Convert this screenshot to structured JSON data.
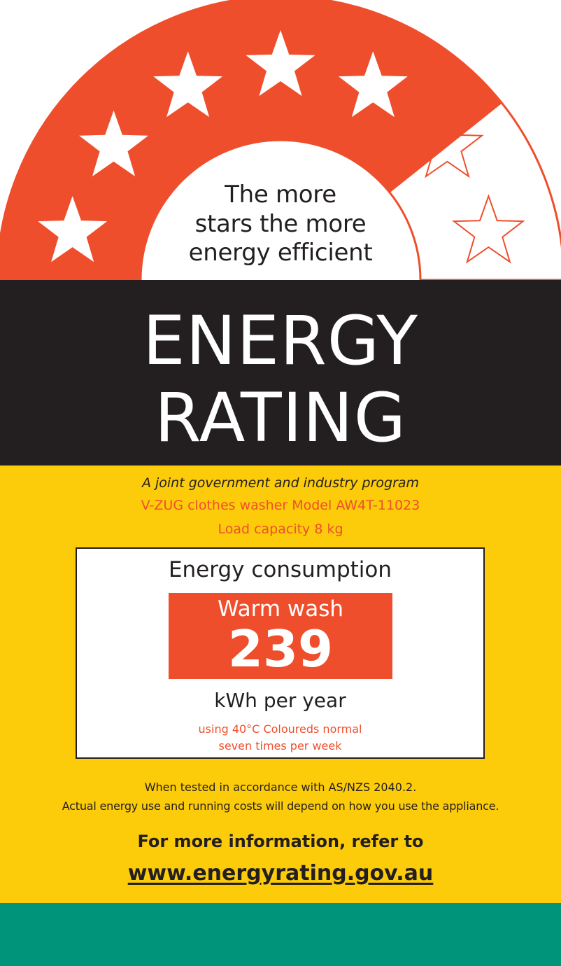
{
  "colors": {
    "orange": "#ef4e2c",
    "black": "#231f20",
    "yellow": "#fccb0a",
    "green": "#00957a",
    "white": "#ffffff"
  },
  "rating": {
    "max_stars": 7,
    "filled_stars": 5.5,
    "star_icon": "star-icon"
  },
  "tagline": {
    "line1": "The more",
    "line2": "stars the more",
    "line3": "energy efficient"
  },
  "title": {
    "line1": "ENERGY",
    "line2": "RATING"
  },
  "program": "A joint government and industry program",
  "product": {
    "model": "V-ZUG clothes washer Model AW4T-11023",
    "capacity": "Load capacity 8 kg"
  },
  "consumption": {
    "title": "Energy consumption",
    "wash_label": "Warm wash",
    "value": "239",
    "units": "kWh per year",
    "condition_line1": "using 40°C Coloureds normal",
    "condition_line2": "seven times per week"
  },
  "footer": {
    "tested": "When tested in accordance with AS/NZS 2040.2.",
    "actual": "Actual energy use and running costs will depend on how you use the appliance.",
    "more_info": "For more information, refer to",
    "website": "www.energyrating.gov.au"
  }
}
